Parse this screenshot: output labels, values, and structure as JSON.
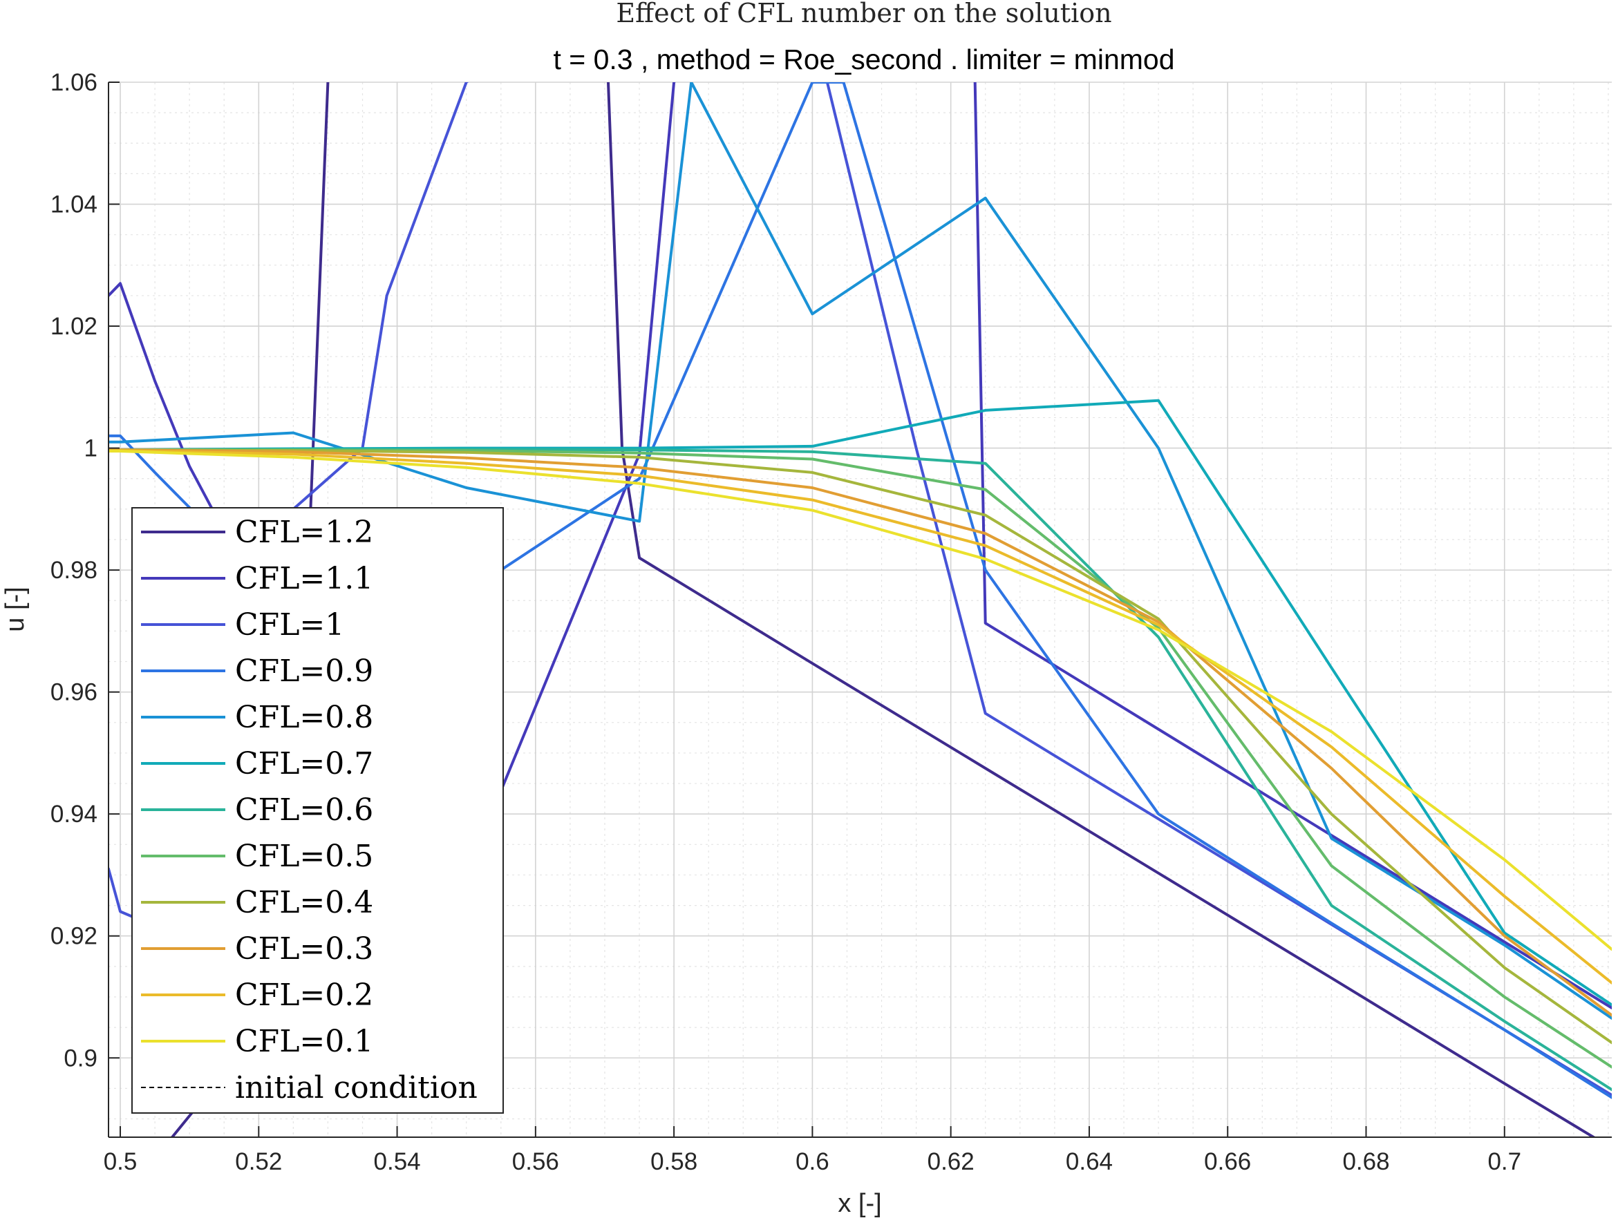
{
  "chart_data": {
    "type": "line",
    "title": "Effect of CFL number on the solution",
    "subtitle": "t = 0.3 , method = Roe_second . limiter = minmod",
    "xlabel": "x [-]",
    "ylabel": "u [-]",
    "xlim": [
      0.4983,
      0.7155
    ],
    "ylim": [
      0.887,
      1.06
    ],
    "x_ticks": [
      0.5,
      0.52,
      0.54,
      0.56,
      0.58,
      0.6,
      0.62,
      0.64,
      0.66,
      0.68,
      0.7
    ],
    "x_tick_labels": [
      "0.5",
      "0.52",
      "0.54",
      "0.56",
      "0.58",
      "0.6",
      "0.62",
      "0.64",
      "0.66",
      "0.68",
      "0.7"
    ],
    "y_ticks": [
      0.9,
      0.92,
      0.94,
      0.96,
      0.98,
      1.0,
      1.02,
      1.04,
      1.06
    ],
    "y_tick_labels": [
      "0.9",
      "0.92",
      "0.94",
      "0.96",
      "0.98",
      "1",
      "1.02",
      "1.04",
      "1.06"
    ],
    "grid": true,
    "minor_grid": true,
    "legend_position": "lower-left",
    "series": [
      {
        "name": "CFL=1.2",
        "color": "#3e2b8d",
        "x": [
          0.5075,
          0.5125,
          0.5175,
          0.5225,
          0.5275,
          0.53,
          0.5345,
          0.56,
          0.5705,
          0.5725,
          0.575,
          0.6,
          0.625,
          0.65,
          0.675,
          0.7,
          0.7155
        ],
        "y": [
          0.887,
          0.894,
          0.918,
          0.945,
          0.99,
          1.06,
          1.08,
          1.1,
          1.06,
          1.0,
          0.982,
          0.9647,
          0.9475,
          0.9303,
          0.9131,
          0.8958,
          0.8852
        ]
      },
      {
        "name": "CFL=1.1",
        "color": "#4439ba",
        "x": [
          0.4983,
          0.5,
          0.505,
          0.51,
          0.525,
          0.55,
          0.575,
          0.58,
          0.6,
          0.6175,
          0.6235,
          0.625,
          0.65,
          0.675,
          0.7,
          0.7155
        ],
        "y": [
          1.025,
          1.027,
          1.011,
          0.997,
          0.965,
          0.93,
          0.999,
          1.06,
          1.09,
          1.08,
          1.06,
          0.9713,
          0.9539,
          0.9365,
          0.919,
          0.9082
        ]
      },
      {
        "name": "CFL=1",
        "color": "#4653d7",
        "x": [
          0.4983,
          0.5,
          0.5025,
          0.505,
          0.51,
          0.52,
          0.525,
          0.535,
          0.5385,
          0.55,
          0.575,
          0.6,
          0.615,
          0.625,
          0.65,
          0.675,
          0.7,
          0.7155
        ],
        "y": [
          0.931,
          0.924,
          0.9228,
          0.92,
          0.93,
          0.96,
          0.99,
          1.0,
          1.025,
          1.06,
          1.08,
          1.07,
          1.0,
          0.9565,
          0.9392,
          0.9219,
          0.9046,
          0.8939
        ]
      },
      {
        "name": "CFL=0.9",
        "color": "#2d74e3",
        "x": [
          0.4983,
          0.5,
          0.505,
          0.525,
          0.5375,
          0.55,
          0.555,
          0.575,
          0.6,
          0.6045,
          0.625,
          0.65,
          0.675,
          0.7,
          0.7155
        ],
        "y": [
          1.002,
          1.002,
          0.996,
          0.973,
          0.965,
          0.959,
          0.98,
          0.995,
          1.06,
          1.06,
          0.98,
          0.94,
          0.9221,
          0.9046,
          0.8935
        ]
      },
      {
        "name": "CFL=0.8",
        "color": "#1a92d6",
        "x": [
          0.4983,
          0.5,
          0.525,
          0.55,
          0.575,
          0.5825,
          0.6,
          0.625,
          0.65,
          0.675,
          0.7,
          0.7155
        ],
        "y": [
          1.001,
          1.001,
          1.0025,
          0.9935,
          0.988,
          1.06,
          1.022,
          1.041,
          1.0,
          0.936,
          0.9185,
          0.9065
        ]
      },
      {
        "name": "CFL=0.7",
        "color": "#11aab8",
        "x": [
          0.4983,
          0.5,
          0.525,
          0.55,
          0.575,
          0.6,
          0.625,
          0.65,
          0.675,
          0.7,
          0.7155
        ],
        "y": [
          0.9997,
          0.9997,
          0.9999,
          1.0,
          1.0,
          1.0003,
          1.0062,
          1.0078,
          0.964,
          0.9205,
          0.9087
        ]
      },
      {
        "name": "CFL=0.6",
        "color": "#2ab39a",
        "x": [
          0.4983,
          0.5,
          0.525,
          0.55,
          0.575,
          0.6,
          0.625,
          0.65,
          0.675,
          0.7,
          0.7155
        ],
        "y": [
          0.9997,
          0.9997,
          0.9998,
          0.9998,
          0.9997,
          0.9994,
          0.9975,
          0.969,
          0.925,
          0.906,
          0.8948
        ]
      },
      {
        "name": "CFL=0.5",
        "color": "#64bc6b",
        "x": [
          0.4983,
          0.5,
          0.525,
          0.55,
          0.575,
          0.6,
          0.625,
          0.65,
          0.675,
          0.7,
          0.7155
        ],
        "y": [
          0.9997,
          0.9997,
          0.9997,
          0.9996,
          0.9992,
          0.9982,
          0.9932,
          0.9705,
          0.9315,
          0.91,
          0.8985
        ]
      },
      {
        "name": "CFL=0.4",
        "color": "#a5b63c",
        "x": [
          0.4983,
          0.5,
          0.525,
          0.55,
          0.575,
          0.6,
          0.625,
          0.65,
          0.675,
          0.7,
          0.7155
        ],
        "y": [
          0.9997,
          0.9997,
          0.9996,
          0.9993,
          0.9985,
          0.996,
          0.989,
          0.972,
          0.94,
          0.9148,
          0.9025
        ]
      },
      {
        "name": "CFL=0.3",
        "color": "#e19e33",
        "x": [
          0.4983,
          0.5,
          0.525,
          0.55,
          0.575,
          0.6,
          0.625,
          0.65,
          0.675,
          0.7,
          0.7155
        ],
        "y": [
          0.9997,
          0.9997,
          0.9994,
          0.9984,
          0.9968,
          0.9935,
          0.986,
          0.9715,
          0.9475,
          0.92,
          0.907
        ]
      },
      {
        "name": "CFL=0.2",
        "color": "#ebbb2a",
        "x": [
          0.4983,
          0.5,
          0.525,
          0.55,
          0.575,
          0.6,
          0.625,
          0.65,
          0.675,
          0.7,
          0.7155
        ],
        "y": [
          0.9996,
          0.9996,
          0.999,
          0.9975,
          0.9955,
          0.9915,
          0.984,
          0.971,
          0.951,
          0.9265,
          0.9123
        ]
      },
      {
        "name": "CFL=0.1",
        "color": "#ebe12d",
        "x": [
          0.4983,
          0.5,
          0.525,
          0.55,
          0.575,
          0.6,
          0.625,
          0.65,
          0.675,
          0.7,
          0.7155
        ],
        "y": [
          0.9995,
          0.9995,
          0.9985,
          0.9968,
          0.9942,
          0.9898,
          0.9818,
          0.9702,
          0.9535,
          0.9325,
          0.9178
        ]
      }
    ],
    "legend_entries": [
      {
        "label": "CFL=1.2",
        "color": "#3e2b8d",
        "dashed": false
      },
      {
        "label": "CFL=1.1",
        "color": "#4439ba",
        "dashed": false
      },
      {
        "label": "CFL=1",
        "color": "#4653d7",
        "dashed": false
      },
      {
        "label": "CFL=0.9",
        "color": "#2d74e3",
        "dashed": false
      },
      {
        "label": "CFL=0.8",
        "color": "#1a92d6",
        "dashed": false
      },
      {
        "label": "CFL=0.7",
        "color": "#11aab8",
        "dashed": false
      },
      {
        "label": "CFL=0.6",
        "color": "#2ab39a",
        "dashed": false
      },
      {
        "label": "CFL=0.5",
        "color": "#64bc6b",
        "dashed": false
      },
      {
        "label": "CFL=0.4",
        "color": "#a5b63c",
        "dashed": false
      },
      {
        "label": "CFL=0.3",
        "color": "#e19e33",
        "dashed": false
      },
      {
        "label": "CFL=0.2",
        "color": "#ebbb2a",
        "dashed": false
      },
      {
        "label": "CFL=0.1",
        "color": "#ebe12d",
        "dashed": false
      },
      {
        "label": "initial condition",
        "color": "#000000",
        "dashed": true
      }
    ]
  }
}
